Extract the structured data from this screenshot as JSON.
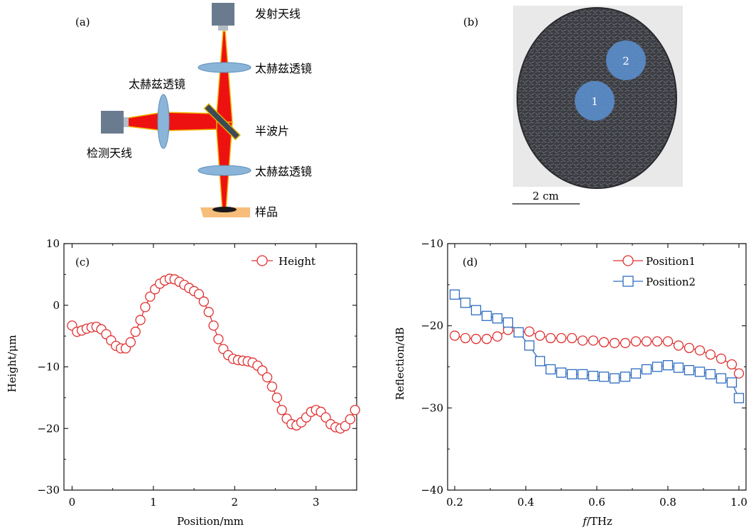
{
  "panel_a": {
    "letter": "(a)",
    "labels": {
      "tx_antenna": "发射天线",
      "lens_top": "太赫兹透镜",
      "lens_left": "太赫兹透镜",
      "half_wave": "半波片",
      "lens_bottom": "太赫兹透镜",
      "sample": "样品",
      "rx_antenna": "检测天线"
    },
    "colors": {
      "beam": "#ee1111",
      "beam_edge": "#f2b500",
      "lens": "#8ab4d8",
      "antenna": "#6b7b8f",
      "sample": "#f6be7a"
    }
  },
  "panel_b": {
    "letter": "(b)",
    "markers": [
      "1",
      "2"
    ],
    "scale_bar": "2 cm",
    "colors": {
      "disc": "#3c3d42",
      "marker": "#5b8fcf"
    }
  },
  "chart_data": [
    {
      "type": "line",
      "panel_letter": "(c)",
      "xlabel": "Position/mm",
      "ylabel": "Height/μm",
      "xlim": [
        -0.1,
        3.5
      ],
      "ylim": [
        -30,
        10
      ],
      "xticks": [
        0,
        1,
        2,
        3
      ],
      "yticks": [
        10,
        0,
        -10,
        -20,
        -30
      ],
      "ytick_labels": [
        "10",
        "0",
        "−10",
        "−20",
        "−30"
      ],
      "legend_position": "top-right",
      "series": [
        {
          "name": "Height",
          "marker": "circle",
          "color": "#e03030",
          "x": [
            0,
            0.06,
            0.12,
            0.18,
            0.24,
            0.3,
            0.36,
            0.42,
            0.48,
            0.54,
            0.6,
            0.66,
            0.72,
            0.78,
            0.84,
            0.9,
            0.96,
            1.02,
            1.08,
            1.14,
            1.2,
            1.26,
            1.32,
            1.38,
            1.44,
            1.5,
            1.56,
            1.62,
            1.68,
            1.74,
            1.8,
            1.86,
            1.92,
            1.98,
            2.04,
            2.1,
            2.16,
            2.22,
            2.28,
            2.34,
            2.4,
            2.46,
            2.52,
            2.58,
            2.64,
            2.7,
            2.76,
            2.82,
            2.88,
            2.94,
            3.0,
            3.06,
            3.12,
            3.18,
            3.24,
            3.3,
            3.36,
            3.42,
            3.48
          ],
          "y": [
            -3.3,
            -4.3,
            -4.1,
            -3.8,
            -3.6,
            -3.5,
            -3.9,
            -4.7,
            -5.7,
            -6.6,
            -7.0,
            -7.0,
            -6.0,
            -4.3,
            -2.4,
            -0.3,
            1.4,
            2.6,
            3.5,
            4.0,
            4.3,
            4.2,
            3.8,
            3.3,
            2.8,
            2.3,
            1.8,
            0.6,
            -1.1,
            -3.3,
            -5.5,
            -7.1,
            -8.1,
            -8.7,
            -8.9,
            -9.0,
            -9.1,
            -9.3,
            -9.8,
            -10.6,
            -11.7,
            -13.2,
            -15.0,
            -17.0,
            -18.4,
            -19.3,
            -19.5,
            -19.0,
            -18.2,
            -17.3,
            -17.0,
            -17.3,
            -18.2,
            -19.3,
            -19.8,
            -20.0,
            -19.6,
            -18.5,
            -17.0
          ]
        }
      ]
    },
    {
      "type": "line",
      "panel_letter": "(d)",
      "xlabel_italic": "f",
      "xlabel_rest": "/THz",
      "ylabel": "Reflection/dB",
      "xlim": [
        0.18,
        1.02
      ],
      "ylim": [
        -40,
        -10
      ],
      "xticks": [
        0.2,
        0.4,
        0.6,
        0.8,
        1.0
      ],
      "xtick_labels": [
        "0.2",
        "0.4",
        "0.6",
        "0.8",
        "1.0"
      ],
      "yticks": [
        -10,
        -20,
        -30,
        -40
      ],
      "ytick_labels": [
        "−10",
        "−20",
        "−30",
        "−40"
      ],
      "legend_position": "top-right",
      "series": [
        {
          "name": "Position1",
          "marker": "circle",
          "color": "#e03030",
          "x": [
            0.2,
            0.23,
            0.26,
            0.29,
            0.32,
            0.35,
            0.38,
            0.41,
            0.44,
            0.47,
            0.5,
            0.53,
            0.56,
            0.59,
            0.62,
            0.65,
            0.68,
            0.71,
            0.74,
            0.77,
            0.8,
            0.83,
            0.86,
            0.89,
            0.92,
            0.95,
            0.98,
            1.0
          ],
          "y": [
            -21.2,
            -21.5,
            -21.6,
            -21.6,
            -21.3,
            -20.5,
            -20.8,
            -20.7,
            -21.2,
            -21.5,
            -21.5,
            -21.5,
            -21.8,
            -21.8,
            -22.0,
            -22.1,
            -22.1,
            -21.9,
            -21.9,
            -21.9,
            -21.9,
            -22.4,
            -22.7,
            -23.0,
            -23.5,
            -24.0,
            -24.7,
            -25.8
          ]
        },
        {
          "name": "Position2",
          "marker": "square",
          "color": "#2e6cc0",
          "x": [
            0.2,
            0.23,
            0.26,
            0.29,
            0.32,
            0.35,
            0.38,
            0.41,
            0.44,
            0.47,
            0.5,
            0.53,
            0.56,
            0.59,
            0.62,
            0.65,
            0.68,
            0.71,
            0.74,
            0.77,
            0.8,
            0.83,
            0.86,
            0.89,
            0.92,
            0.95,
            0.98,
            1.0
          ],
          "y": [
            -16.2,
            -17.2,
            -18.1,
            -18.8,
            -19.1,
            -19.6,
            -20.8,
            -22.4,
            -24.3,
            -25.3,
            -25.7,
            -25.9,
            -25.9,
            -26.1,
            -26.2,
            -26.4,
            -26.2,
            -25.8,
            -25.3,
            -25.0,
            -24.8,
            -25.1,
            -25.4,
            -25.6,
            -25.9,
            -26.4,
            -26.9,
            -28.8
          ]
        }
      ]
    }
  ]
}
